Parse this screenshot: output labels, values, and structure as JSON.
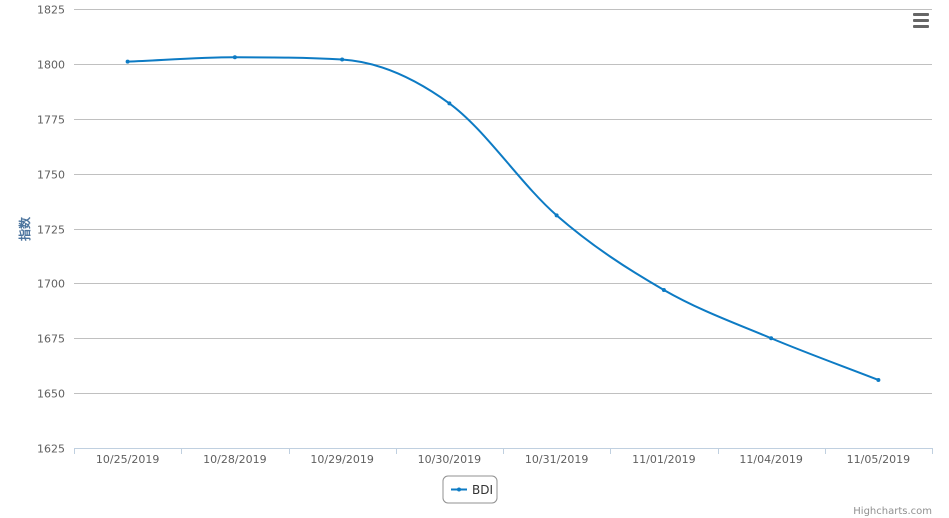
{
  "chart_data": {
    "type": "line",
    "title": "",
    "xlabel": "",
    "ylabel": "指数",
    "categories": [
      "10/25/2019",
      "10/28/2019",
      "10/29/2019",
      "10/30/2019",
      "10/31/2019",
      "11/01/2019",
      "11/04/2019",
      "11/05/2019"
    ],
    "series": [
      {
        "name": "BDI",
        "values": [
          1801,
          1803,
          1802,
          1782,
          1731,
          1697,
          1675,
          1656
        ],
        "color": "#0d7bc4"
      }
    ],
    "ylim": [
      1625,
      1825
    ],
    "yticks": [
      1625,
      1650,
      1675,
      1700,
      1725,
      1750,
      1775,
      1800,
      1825
    ],
    "grid": true,
    "legend": "bottom-center"
  },
  "menu_icon": "hamburger-menu-icon",
  "credits": "Highcharts.com"
}
